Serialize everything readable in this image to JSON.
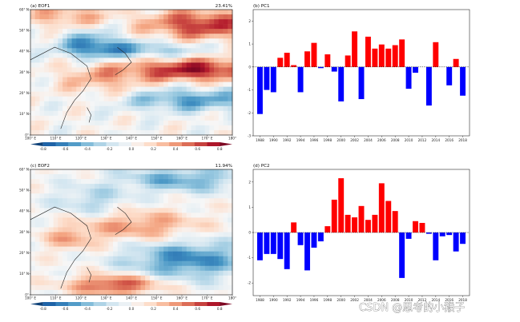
{
  "watermark": "CSDN @思考的小猴子",
  "colors": {
    "positive": "#ff0000",
    "negative": "#0000ff",
    "axis": "#000000"
  },
  "chart_data": [
    {
      "type": "heatmap",
      "panel_label": "(a) EOF1",
      "variance": "23.41%",
      "xticks": [
        "100° E",
        "110° E",
        "120° E",
        "130° E",
        "140° E",
        "150° E",
        "160° E",
        "170° E",
        "180°"
      ],
      "yticks": [
        "0°",
        "10° N",
        "20° N",
        "30° N",
        "40° N",
        "50° N",
        "60° N"
      ],
      "colorbar_ticks": [
        "-0.8",
        "-0.6",
        "-0.4",
        "-0.2",
        "0.0",
        "0.2",
        "0.4",
        "0.6",
        "0.8"
      ],
      "pattern": "eof1"
    },
    {
      "type": "bar",
      "panel_label": "(b) PC1",
      "ylim": [
        -3,
        2.5
      ],
      "yticks": [
        "-3",
        "-2",
        "-1",
        "0",
        "1",
        "2"
      ],
      "xticks": [
        "1988",
        "1990",
        "1992",
        "1994",
        "1996",
        "1998",
        "2000",
        "2002",
        "2004",
        "2006",
        "2008",
        "2010",
        "2012",
        "2014",
        "2016",
        "2018"
      ],
      "x": [
        1988,
        1989,
        1990,
        1991,
        1992,
        1993,
        1994,
        1995,
        1996,
        1997,
        1998,
        1999,
        2000,
        2001,
        2002,
        2003,
        2004,
        2005,
        2006,
        2007,
        2008,
        2009,
        2010,
        2011,
        2012,
        2013,
        2014,
        2015,
        2016,
        2017,
        2018
      ],
      "values": [
        -2.05,
        -1.0,
        -1.1,
        0.4,
        0.62,
        0.08,
        -1.1,
        0.68,
        1.05,
        -0.05,
        0.55,
        -0.2,
        -1.5,
        0.5,
        1.55,
        -1.4,
        1.32,
        0.8,
        0.98,
        0.8,
        0.95,
        1.2,
        -0.95,
        -0.25,
        0.0,
        -1.68,
        1.08,
        0.0,
        -0.8,
        0.35,
        -1.25
      ]
    },
    {
      "type": "heatmap",
      "panel_label": "(c) EOF2",
      "variance": "11.94%",
      "xticks": [
        "100° E",
        "110° E",
        "120° E",
        "130° E",
        "140° E",
        "150° E",
        "160° E",
        "170° E",
        "180°"
      ],
      "yticks": [
        "0°",
        "10° N",
        "20° N",
        "30° N",
        "40° N",
        "50° N",
        "60° N"
      ],
      "colorbar_ticks": [
        "-0.8",
        "-0.6",
        "-0.4",
        "-0.2",
        "0.0",
        "0.2",
        "0.4",
        "0.6",
        "0.8"
      ],
      "pattern": "eof2"
    },
    {
      "type": "bar",
      "panel_label": "(d) PC2",
      "ylim": [
        -2.5,
        2.5
      ],
      "yticks": [
        "-2",
        "-1",
        "0",
        "1",
        "2"
      ],
      "xticks": [
        "1988",
        "1990",
        "1992",
        "1994",
        "1996",
        "1998",
        "2000",
        "2002",
        "2004",
        "2006",
        "2008",
        "2010",
        "2012",
        "2014",
        "2016",
        "2018"
      ],
      "x": [
        1988,
        1989,
        1990,
        1991,
        1992,
        1993,
        1994,
        1995,
        1996,
        1997,
        1998,
        1999,
        2000,
        2001,
        2002,
        2003,
        2004,
        2005,
        2006,
        2007,
        2008,
        2009,
        2010,
        2011,
        2012,
        2013,
        2014,
        2015,
        2016,
        2017,
        2018
      ],
      "values": [
        -1.1,
        -0.85,
        -0.85,
        -1.05,
        -1.45,
        0.4,
        -0.5,
        -1.5,
        -0.6,
        -0.35,
        0.25,
        1.3,
        2.15,
        0.7,
        0.6,
        1.05,
        0.5,
        0.7,
        1.95,
        1.25,
        0.85,
        -1.8,
        -0.25,
        0.45,
        0.38,
        -0.05,
        -1.1,
        -0.15,
        -0.1,
        -0.75,
        -0.45
      ]
    }
  ]
}
